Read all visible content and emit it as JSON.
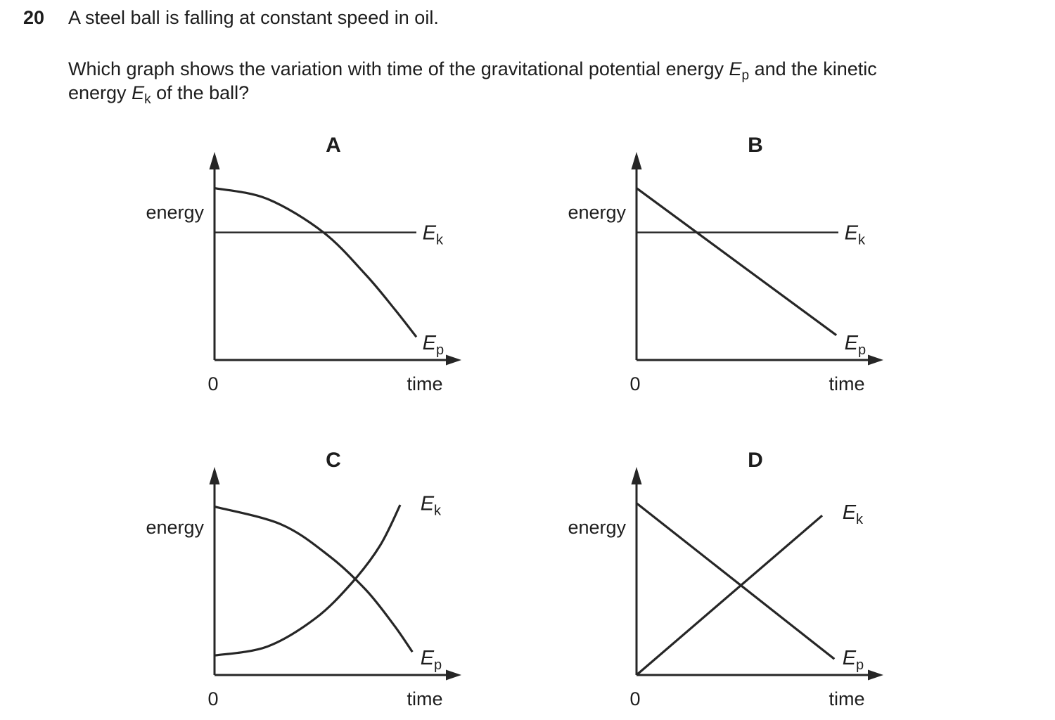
{
  "question": {
    "number": "20",
    "intro": "A steel ball is falling at constant speed in oil.",
    "body": {
      "line1_pre": "Which graph shows the variation with time of the gravitational potential energy ",
      "ep": {
        "base": "E",
        "sub": "p"
      },
      "line1_post": " and the kinetic",
      "line2_pre": "energy ",
      "ek": {
        "base": "E",
        "sub": "k"
      },
      "line2_post": " of the ball?"
    }
  },
  "colors": {
    "text": "#1d1d1d",
    "line": "#262626",
    "background": "#ffffff"
  },
  "chart_note": "Qualitative sketch graphs; axes are unlabeled scales, series values are normalized 0-1 estimates read from the drawing.",
  "chart_data": [
    {
      "title": "A",
      "type": "line",
      "xlabel": "time",
      "ylabel": "energy",
      "origin_label": "0",
      "grid": false,
      "series": [
        {
          "name": "Ek",
          "label": {
            "base": "E",
            "sub": "k"
          },
          "description": "kinetic energy: constant horizontal line",
          "curve": false,
          "stroke_width": 2.4,
          "points": [
            [
              0,
              0.72
            ],
            [
              1,
              0.72
            ]
          ],
          "label_at": [
            1.03,
            0.72
          ]
        },
        {
          "name": "Ep",
          "label": {
            "base": "E",
            "sub": "p"
          },
          "description": "potential energy: decreasing, concave down (steepening)",
          "curve": true,
          "stroke_width": 3.2,
          "points": [
            [
              0,
              0.97
            ],
            [
              0.26,
              0.91
            ],
            [
              0.54,
              0.72
            ],
            [
              0.75,
              0.48
            ],
            [
              0.89,
              0.29
            ],
            [
              1,
              0.13
            ]
          ],
          "label_at": [
            1.03,
            0.1
          ]
        }
      ]
    },
    {
      "title": "B",
      "type": "line",
      "xlabel": "time",
      "ylabel": "energy",
      "origin_label": "0",
      "grid": false,
      "series": [
        {
          "name": "Ek",
          "label": {
            "base": "E",
            "sub": "k"
          },
          "description": "kinetic energy: constant horizontal line",
          "curve": false,
          "stroke_width": 2.4,
          "points": [
            [
              0,
              0.72
            ],
            [
              1,
              0.72
            ]
          ],
          "label_at": [
            1.03,
            0.72
          ]
        },
        {
          "name": "Ep",
          "label": {
            "base": "E",
            "sub": "p"
          },
          "description": "potential energy: straight line decreasing linearly",
          "curve": false,
          "stroke_width": 3.2,
          "points": [
            [
              0,
              0.97
            ],
            [
              0.99,
              0.14
            ]
          ],
          "label_at": [
            1.03,
            0.1
          ]
        }
      ]
    },
    {
      "title": "C",
      "type": "line",
      "xlabel": "time",
      "ylabel": "energy",
      "origin_label": "0",
      "grid": false,
      "series": [
        {
          "name": "Ek",
          "label": {
            "base": "E",
            "sub": "k"
          },
          "description": "kinetic energy: increasing, concave up, crosses Ep",
          "curve": true,
          "stroke_width": 3.2,
          "points": [
            [
              0,
              0.11
            ],
            [
              0.26,
              0.16
            ],
            [
              0.5,
              0.32
            ],
            [
              0.68,
              0.52
            ],
            [
              0.82,
              0.73
            ],
            [
              0.92,
              0.96
            ]
          ],
          "label_at": [
            1.02,
            0.97
          ]
        },
        {
          "name": "Ep",
          "label": {
            "base": "E",
            "sub": "p"
          },
          "description": "potential energy: decreasing, concave down, crosses Ek",
          "curve": true,
          "stroke_width": 3.2,
          "points": [
            [
              0,
              0.95
            ],
            [
              0.33,
              0.85
            ],
            [
              0.57,
              0.67
            ],
            [
              0.75,
              0.48
            ],
            [
              0.89,
              0.28
            ],
            [
              0.98,
              0.13
            ]
          ],
          "label_at": [
            1.02,
            0.1
          ]
        }
      ]
    },
    {
      "title": "D",
      "type": "line",
      "xlabel": "time",
      "ylabel": "energy",
      "origin_label": "0",
      "grid": false,
      "series": [
        {
          "name": "Ek",
          "label": {
            "base": "E",
            "sub": "k"
          },
          "description": "kinetic energy: straight line rising from origin",
          "curve": false,
          "stroke_width": 3.2,
          "points": [
            [
              0,
              0
            ],
            [
              0.92,
              0.9
            ]
          ],
          "label_at": [
            1.02,
            0.92
          ]
        },
        {
          "name": "Ep",
          "label": {
            "base": "E",
            "sub": "p"
          },
          "description": "potential energy: straight line decreasing linearly from top",
          "curve": false,
          "stroke_width": 3.2,
          "points": [
            [
              0,
              0.97
            ],
            [
              0.98,
              0.09
            ]
          ],
          "label_at": [
            1.02,
            0.1
          ]
        }
      ]
    }
  ]
}
